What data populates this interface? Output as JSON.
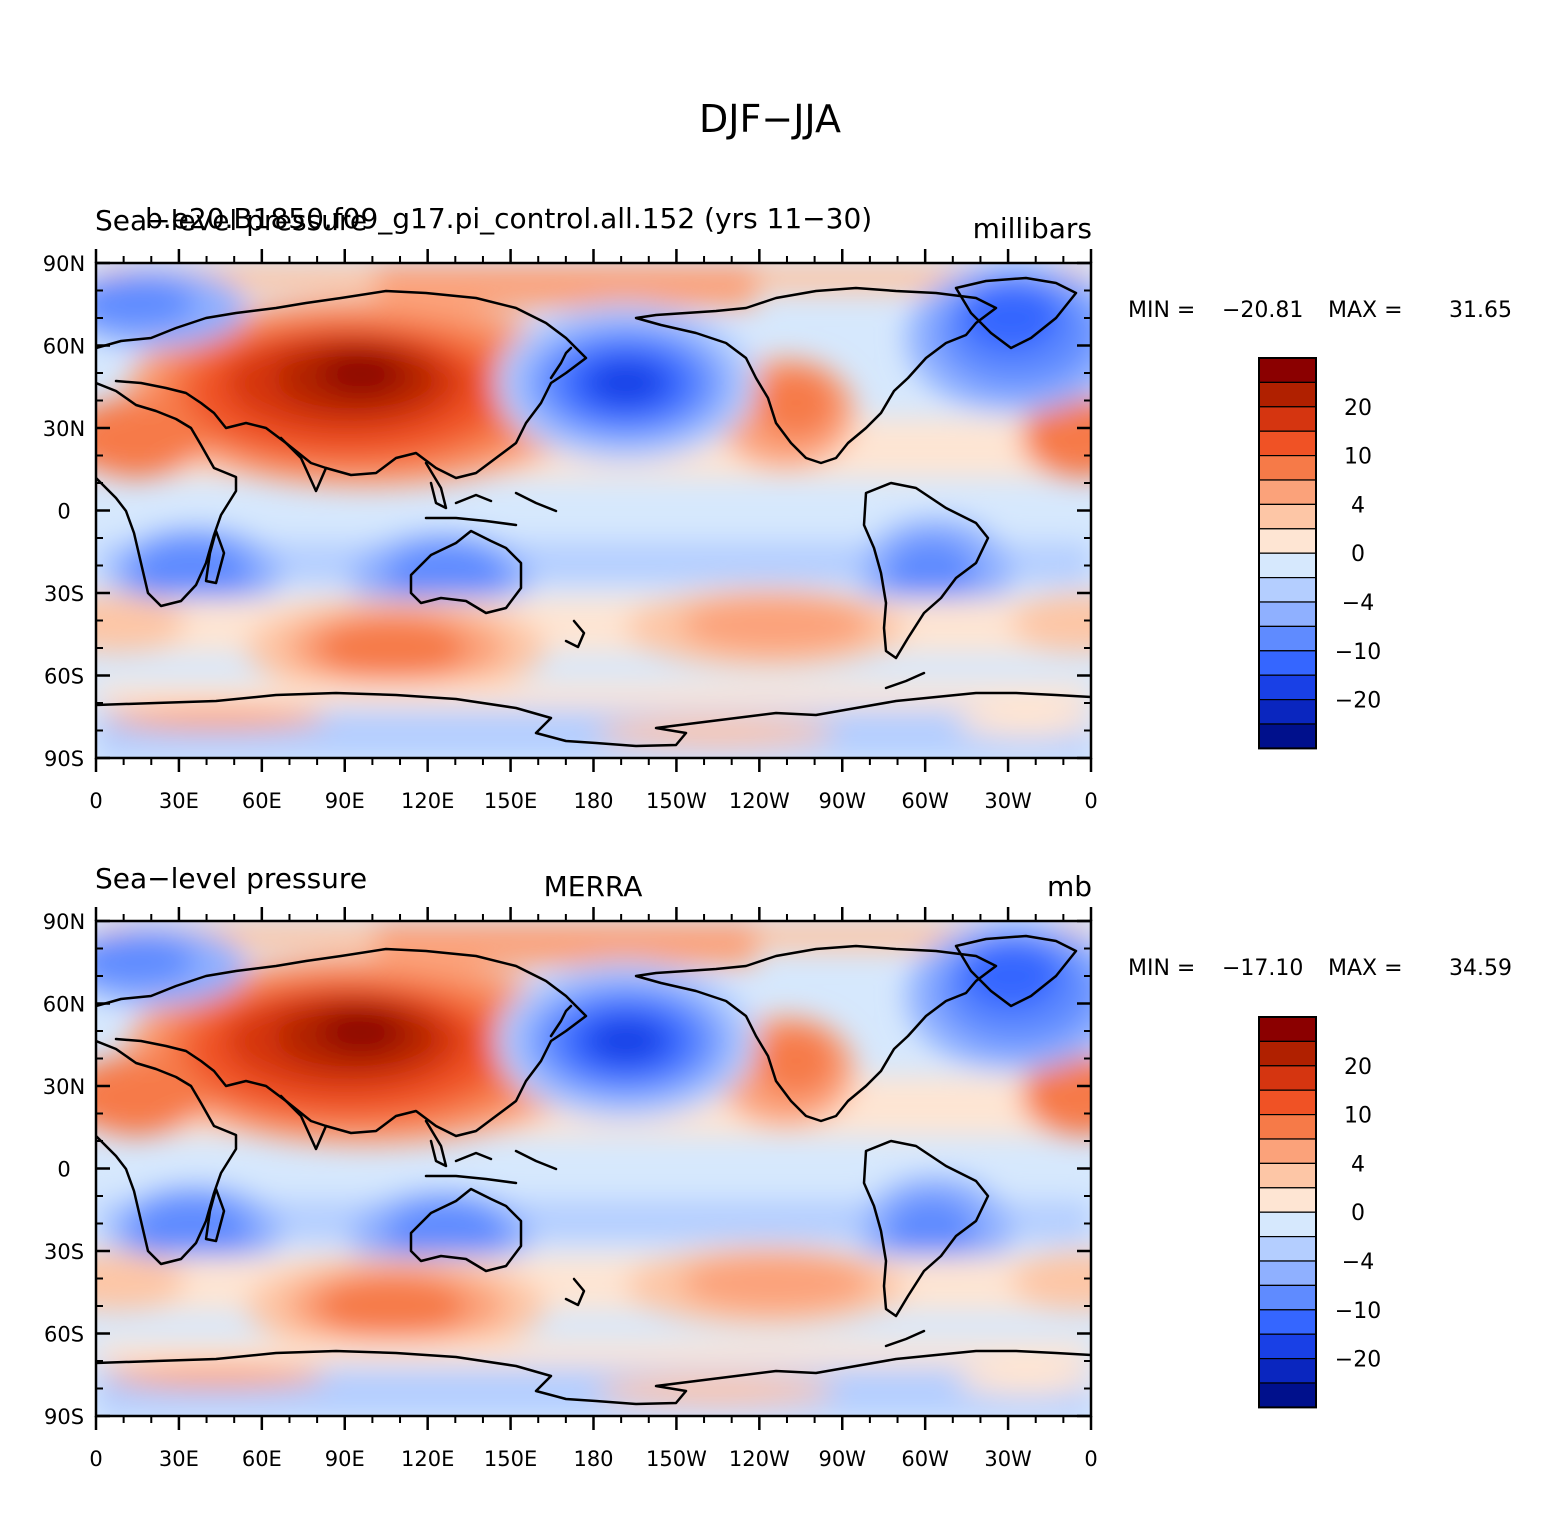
{
  "figure_title": "DJF−JJA",
  "colorbar_levels": [
    "20",
    "10",
    "4",
    "0",
    "−4",
    "−10",
    "−20"
  ],
  "colorbar_colors": [
    "#8b0000",
    "#b02000",
    "#d53510",
    "#f05225",
    "#f67a48",
    "#fba27a",
    "#fdc6a6",
    "#fee5d3",
    "#d6e8fd",
    "#b4ceff",
    "#8fb0ff",
    "#5f8bff",
    "#3566ff",
    "#1940e6",
    "#0a26bf",
    "#00108c"
  ],
  "chart_data": [
    {
      "type": "heatmap",
      "title_left": "Sea−level pressure",
      "title_overlay": "b.e20.B1850.f09_g17.pi_control.all.152 (yrs 11−30)",
      "title_center": "",
      "units": "millibars",
      "stats": {
        "min_label": "MIN =",
        "min": "−20.81",
        "max_label": "MAX =",
        "max": "31.65"
      },
      "x_ticks": [
        "0",
        "30E",
        "60E",
        "90E",
        "120E",
        "150E",
        "180",
        "150W",
        "120W",
        "90W",
        "60W",
        "30W",
        "0"
      ],
      "y_ticks": [
        "90N",
        "60N",
        "30N",
        "0",
        "30S",
        "60S",
        "90S"
      ],
      "x_range": [
        0,
        360
      ],
      "y_range": [
        -90,
        90
      ]
    },
    {
      "type": "heatmap",
      "title_left": "Sea−level pressure",
      "title_overlay": "",
      "title_center": "MERRA",
      "units": "mb",
      "stats": {
        "min_label": "MIN =",
        "min": "−17.10",
        "max_label": "MAX =",
        "max": "34.59"
      },
      "x_ticks": [
        "0",
        "30E",
        "60E",
        "90E",
        "120E",
        "150E",
        "180",
        "150W",
        "120W",
        "90W",
        "60W",
        "30W",
        "0"
      ],
      "y_ticks": [
        "90N",
        "60N",
        "30N",
        "0",
        "30S",
        "60S",
        "90S"
      ],
      "x_range": [
        0,
        360
      ],
      "y_range": [
        -90,
        90
      ]
    }
  ]
}
